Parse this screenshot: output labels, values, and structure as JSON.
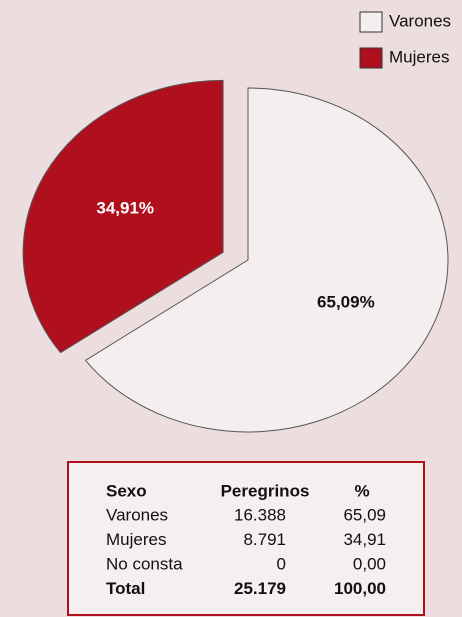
{
  "chart_data": {
    "type": "pie",
    "categories": [
      "Varones",
      "Mujeres"
    ],
    "values": [
      65.09,
      34.91
    ],
    "value_labels": [
      "65,09%",
      "34,91%"
    ],
    "colors": [
      "#f4eeee",
      "#b0101e"
    ]
  },
  "table": {
    "header": [
      "Sexo",
      "Peregrinos",
      "%"
    ],
    "rows": [
      [
        "Varones",
        "16.388",
        "65,09"
      ],
      [
        "Mujeres",
        "8.791",
        "34,91"
      ],
      [
        "No consta",
        "0",
        "0,00"
      ],
      [
        "Total",
        "25.179",
        "100,00"
      ]
    ]
  }
}
